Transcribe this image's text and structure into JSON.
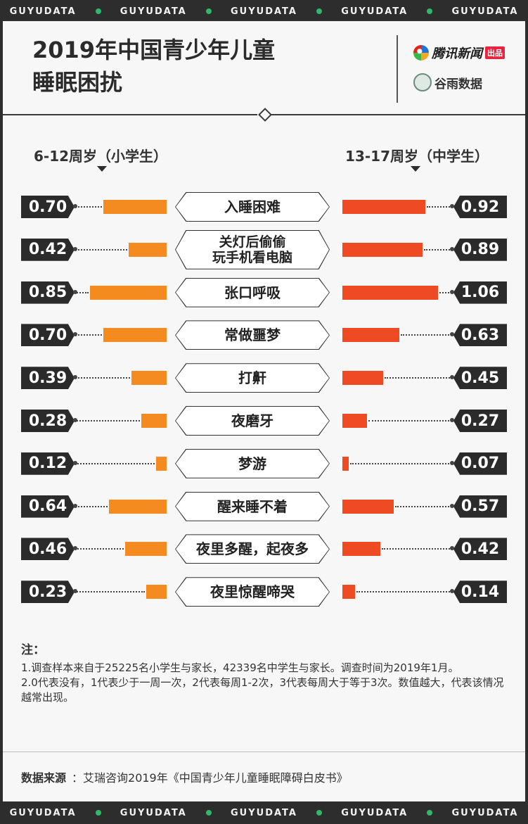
{
  "brand_strip": [
    "GUYUDATA",
    "GUYUDATA",
    "GUYUDATA",
    "GUYUDATA",
    "GUYUDATA"
  ],
  "header": {
    "title_line1": "2019年中国青少年儿童",
    "title_line2": "睡眠困扰",
    "logo_tencent": "腾讯新闻",
    "logo_tencent_badge": "出品",
    "logo_guyu": "谷雨数据"
  },
  "colors": {
    "left_bar": "#f48b20",
    "right_bar": "#ee4b24",
    "value_box": "#2b2b2b",
    "strip_dot": "#2fb86a"
  },
  "chart_data": {
    "type": "bar",
    "layout": "butterfly",
    "title": "2019年中国青少年儿童睡眠困扰",
    "categories": [
      "入睡困难",
      "关灯后偷偷\n玩手机看电脑",
      "张口呼吸",
      "常做噩梦",
      "打鼾",
      "夜磨牙",
      "梦游",
      "醒来睡不着",
      "夜里多醒，起夜多",
      "夜里惊醒啼哭"
    ],
    "series": [
      {
        "name": "6-12周岁（小学生）",
        "values": [
          0.7,
          0.42,
          0.85,
          0.7,
          0.39,
          0.28,
          0.12,
          0.64,
          0.46,
          0.23
        ],
        "labels": [
          "0.70",
          "0.42",
          "0.85",
          "0.70",
          "0.39",
          "0.28",
          "0.12",
          "0.64",
          "0.46",
          "0.23"
        ]
      },
      {
        "name": "13-17周岁（中学生）",
        "values": [
          0.92,
          0.89,
          1.06,
          0.63,
          0.45,
          0.27,
          0.07,
          0.57,
          0.42,
          0.14
        ],
        "labels": [
          "0.92",
          "0.89",
          "1.06",
          "0.63",
          "0.45",
          "0.27",
          "0.07",
          "0.57",
          "0.42",
          "0.14"
        ]
      }
    ]
  },
  "notes": {
    "title": "注：",
    "lines": [
      "1.调查样本来自于25225名小学生与家长，42339名中学生与家长。调查时间为2019年1月。",
      "2.0代表没有，1代表少于一周一次，2代表每周1-2次，3代表每周大于等于3次。数值越大，代表该情况越常出现。"
    ]
  },
  "source": {
    "label": "数据来源",
    "text": "：艾瑞咨询2019年《中国青少年儿童睡眠障碍白皮书》"
  }
}
